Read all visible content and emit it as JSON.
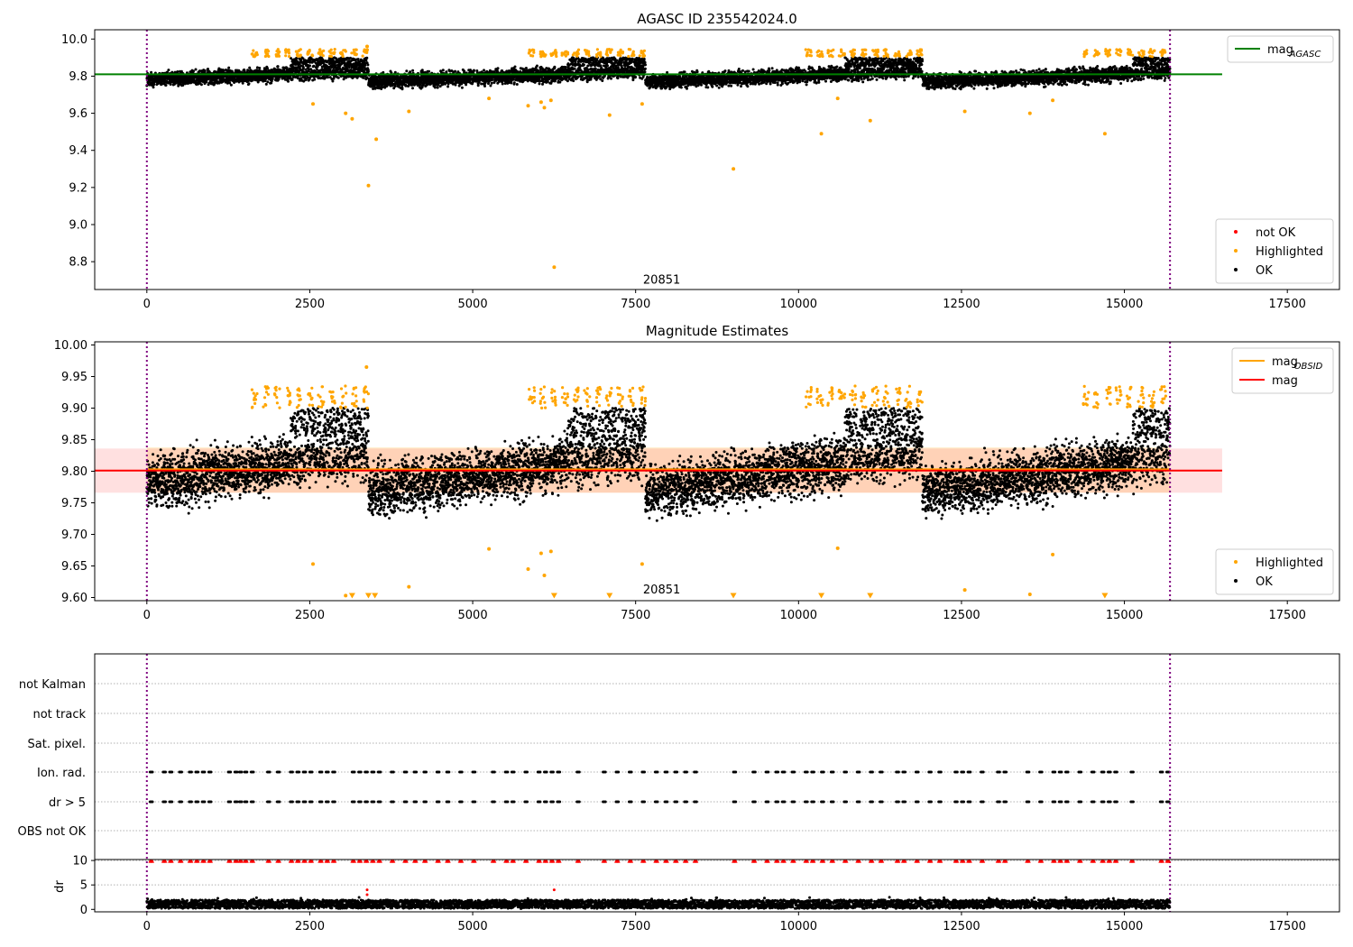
{
  "chart_data": [
    {
      "type": "scatter",
      "title": "AGASC ID 235542024.0",
      "x_ticks": [
        0,
        2500,
        5000,
        7500,
        10000,
        12500,
        15000,
        17500
      ],
      "y_ticks": [
        8.8,
        9.0,
        9.2,
        9.4,
        9.6,
        9.8,
        10.0
      ],
      "xlim": [
        -800,
        18300
      ],
      "ylim": [
        8.65,
        10.05
      ],
      "obs_boundaries": [
        0,
        15700
      ],
      "annotation": {
        "text": "20851",
        "x": 7900,
        "y": 8.7
      },
      "hlines": [
        {
          "name": "mag",
          "subscript": "AGASC",
          "y": 9.81,
          "x_range": [
            -800,
            16500
          ],
          "color": "#008000"
        }
      ],
      "legend_top": {
        "placement": "top-right",
        "entries": [
          {
            "name": "mag",
            "subscript": "AGASC",
            "color": "#008000",
            "marker": "line"
          }
        ]
      },
      "legend_bottom": {
        "placement": "bottom-right",
        "entries": [
          {
            "name": "not OK",
            "color": "#ff0000",
            "marker": "dot"
          },
          {
            "name": "Highlighted",
            "color": "#ffa500",
            "marker": "dot"
          },
          {
            "name": "OK",
            "color": "#000000",
            "marker": "dot"
          }
        ]
      },
      "series": [
        {
          "name": "OK",
          "color": "#000000",
          "y_center": 9.8,
          "y_band": [
            9.73,
            9.9
          ],
          "x_range": [
            0,
            15700
          ]
        },
        {
          "name": "Highlighted",
          "color": "#ffa500",
          "points": [
            [
              2550,
              9.65
            ],
            [
              3050,
              9.6
            ],
            [
              3150,
              9.57
            ],
            [
              3380,
              9.96
            ],
            [
              3400,
              9.21
            ],
            [
              3520,
              9.46
            ],
            [
              4020,
              9.61
            ],
            [
              5250,
              9.68
            ],
            [
              5850,
              9.64
            ],
            [
              6050,
              9.66
            ],
            [
              6100,
              9.63
            ],
            [
              6200,
              9.67
            ],
            [
              6250,
              8.77
            ],
            [
              7100,
              9.59
            ],
            [
              7600,
              9.65
            ],
            [
              9000,
              9.3
            ],
            [
              10350,
              9.49
            ],
            [
              10600,
              9.68
            ],
            [
              11100,
              9.56
            ],
            [
              12550,
              9.61
            ],
            [
              13550,
              9.6
            ],
            [
              13900,
              9.67
            ],
            [
              14700,
              9.49
            ]
          ]
        }
      ]
    },
    {
      "type": "scatter",
      "title": "Magnitude Estimates",
      "x_ticks": [
        0,
        2500,
        5000,
        7500,
        10000,
        12500,
        15000,
        17500
      ],
      "y_ticks": [
        9.6,
        9.65,
        9.7,
        9.75,
        9.8,
        9.85,
        9.9,
        9.95,
        10.0
      ],
      "xlim": [
        -800,
        18300
      ],
      "ylim": [
        9.595,
        10.005
      ],
      "obs_boundaries": [
        0,
        15700
      ],
      "annotation": {
        "text": "20851",
        "x": 7900,
        "y": 9.612
      },
      "bands": [
        {
          "color": "#ffa500",
          "y_range": [
            9.766,
            9.838
          ],
          "x_range": [
            0,
            15700
          ],
          "opacity": 0.18
        },
        {
          "color": "#ff0000",
          "y_range": [
            9.766,
            9.836
          ],
          "x_range": [
            -800,
            16500
          ],
          "opacity": 0.12
        }
      ],
      "hlines": [
        {
          "name": "mag",
          "subscript": "OBSID",
          "y": 9.803,
          "x_range": [
            0,
            15700
          ],
          "color": "#ffa500"
        },
        {
          "name": "mag",
          "y": 9.801,
          "x_range": [
            -800,
            16500
          ],
          "color": "#ff0000"
        }
      ],
      "legend_top": {
        "placement": "top-right",
        "entries": [
          {
            "name": "mag",
            "subscript": "OBSID",
            "color": "#ffa500",
            "marker": "line"
          },
          {
            "name": "mag",
            "subscript": "",
            "color": "#ff0000",
            "marker": "line"
          }
        ]
      },
      "legend_bottom": {
        "placement": "bottom-right",
        "entries": [
          {
            "name": "Highlighted",
            "color": "#ffa500",
            "marker": "dot"
          },
          {
            "name": "OK",
            "color": "#000000",
            "marker": "dot"
          }
        ]
      },
      "series": [
        {
          "name": "OK",
          "color": "#000000",
          "y_center": 9.8,
          "y_band": [
            9.72,
            9.9
          ],
          "x_range": [
            0,
            15700
          ]
        },
        {
          "name": "Highlighted",
          "color": "#ffa500",
          "points": [
            [
              2550,
              9.653
            ],
            [
              3050,
              9.603
            ],
            [
              3370,
              9.965
            ],
            [
              4020,
              9.617
            ],
            [
              5250,
              9.677
            ],
            [
              5850,
              9.645
            ],
            [
              6050,
              9.67
            ],
            [
              6100,
              9.635
            ],
            [
              6200,
              9.673
            ],
            [
              7600,
              9.653
            ],
            [
              10600,
              9.678
            ],
            [
              12550,
              9.612
            ],
            [
              13550,
              9.605
            ],
            [
              13900,
              9.668
            ]
          ]
        },
        {
          "name": "Highlighted (below range)",
          "color": "#ffa500",
          "marker": "triangle-down",
          "points": [
            [
              3150,
              9.6
            ],
            [
              3400,
              9.6
            ],
            [
              3500,
              9.6
            ],
            [
              6250,
              9.6
            ],
            [
              7100,
              9.6
            ],
            [
              9000,
              9.6
            ],
            [
              10350,
              9.6
            ],
            [
              11100,
              9.6
            ],
            [
              14700,
              9.6
            ]
          ]
        }
      ]
    },
    {
      "type": "scatter",
      "title": "",
      "x_ticks": [
        0,
        2500,
        5000,
        7500,
        10000,
        12500,
        15000,
        17500
      ],
      "xlim": [
        -800,
        18300
      ],
      "obs_boundaries": [
        0,
        15700
      ],
      "flag_rows": [
        "not Kalman",
        "not track",
        "Sat. pixel.",
        "Ion. rad.",
        "dr > 5",
        "OBS not OK"
      ],
      "flag_events_x": [
        50,
        250,
        350,
        500,
        650,
        750,
        850,
        950,
        1250,
        1350,
        1420,
        1500,
        1600,
        1850,
        2000,
        2200,
        2300,
        2400,
        2500,
        2650,
        2750,
        2850,
        3150,
        3250,
        3350,
        3450,
        3550,
        3750,
        3950,
        4100,
        4250,
        4450,
        4600,
        4800,
        5000,
        5300,
        5500,
        5600,
        5800,
        6000,
        6100,
        6200,
        6300,
        6600,
        7000,
        7200,
        7400,
        7600,
        7800,
        7950,
        8100,
        8250,
        8400,
        9000,
        9300,
        9500,
        9650,
        9750,
        9900,
        10100,
        10200,
        10350,
        10500,
        10700,
        10900,
        11100,
        11250,
        11500,
        11600,
        11800,
        12000,
        12150,
        12400,
        12500,
        12600,
        12800,
        13050,
        13150,
        13500,
        13700,
        13900,
        14000,
        14100,
        14300,
        14500,
        14650,
        14750,
        14850,
        15100,
        15550,
        15650
      ],
      "ylabel": "dr",
      "dr_ticks": [
        0,
        5,
        10
      ],
      "dr_ylim": [
        -0.5,
        10.2
      ],
      "series": [
        {
          "name": "dr",
          "color": "#000000",
          "y_center": 1.2,
          "y_band": [
            0.2,
            2.5
          ],
          "x_range": [
            0,
            15700
          ]
        },
        {
          "name": "dr high",
          "color": "#ff0000",
          "marker": "triangle-up",
          "y": 9.9
        }
      ]
    }
  ]
}
